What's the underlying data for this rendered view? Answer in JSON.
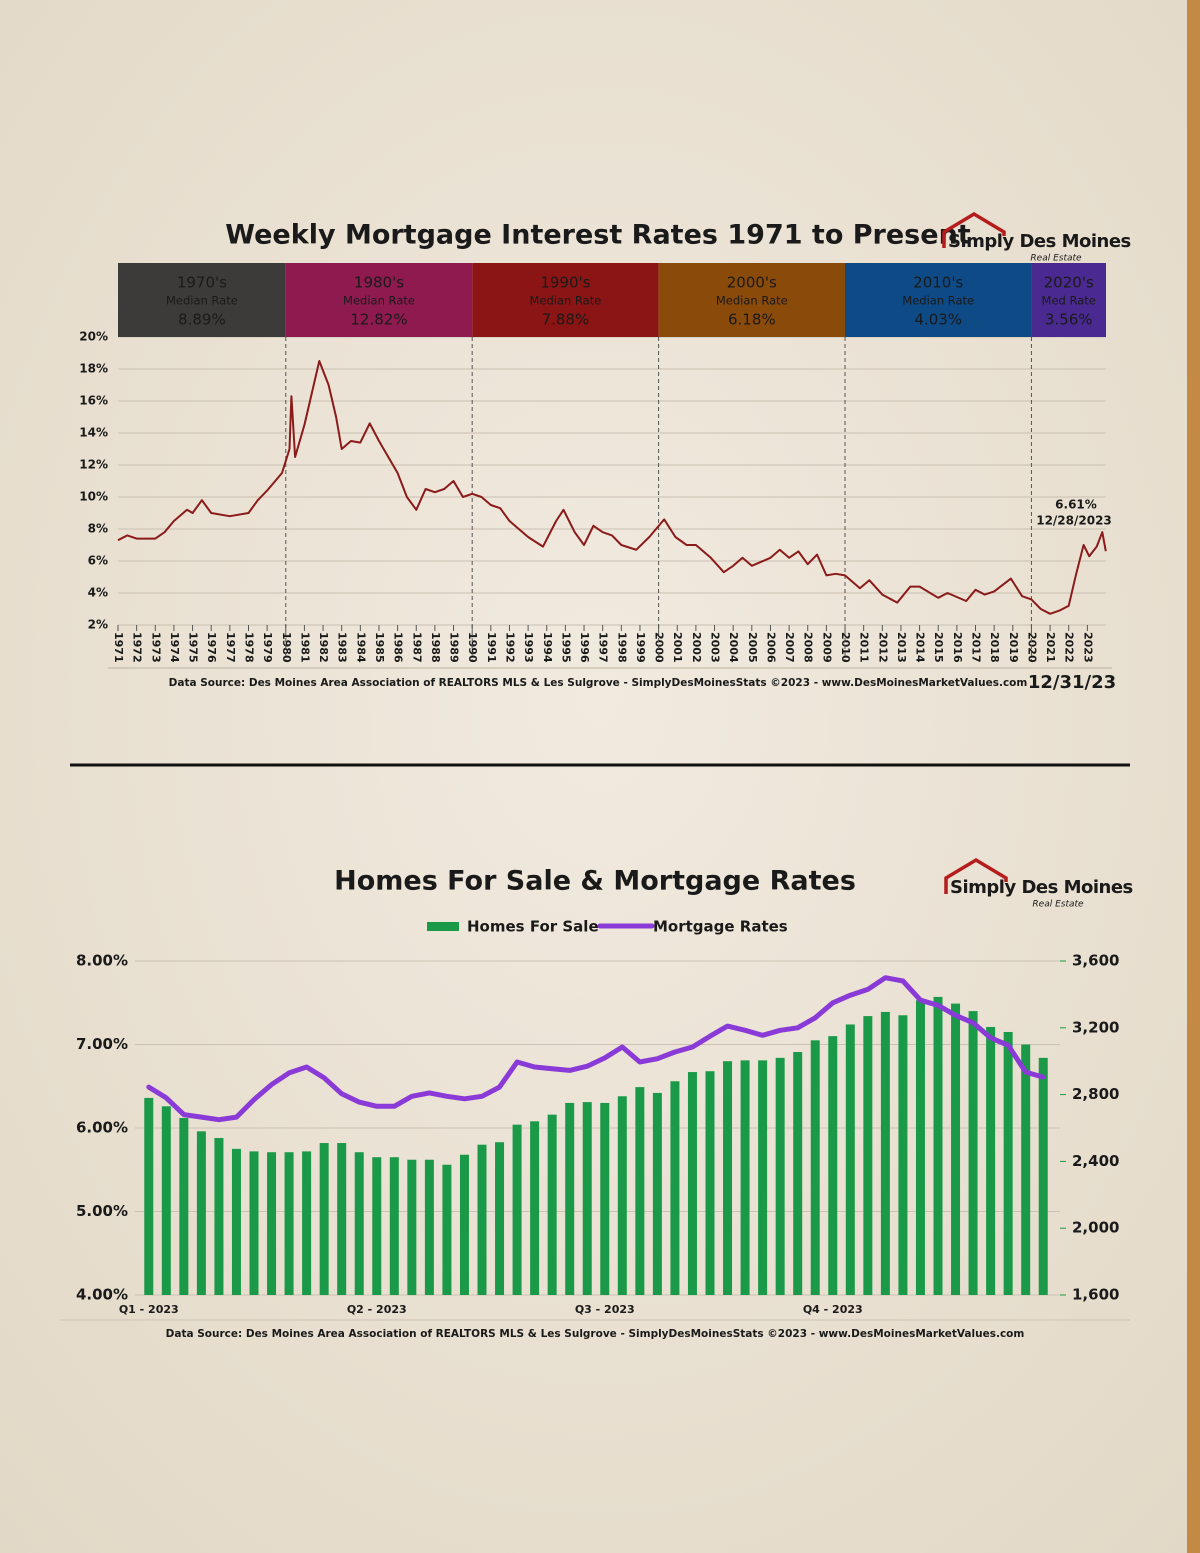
{
  "brand": {
    "name": "Simply Des Moines",
    "tagline": "Real Estate"
  },
  "chart_data": [
    {
      "type": "line",
      "title": "Weekly Mortgage Interest Rates 1971 to Present",
      "color": "#8b1a1a",
      "x": [
        1971,
        1971.5,
        1972,
        1973,
        1973.5,
        1974,
        1974.7,
        1975,
        1975.5,
        1976,
        1977,
        1978,
        1978.5,
        1979,
        1979.8,
        1980.2,
        1980.3,
        1980.5,
        1981,
        1981.5,
        1981.8,
        1982.3,
        1982.7,
        1983,
        1983.5,
        1984,
        1984.5,
        1985,
        1985.5,
        1986,
        1986.5,
        1987,
        1987.5,
        1988,
        1988.5,
        1989,
        1989.5,
        1990,
        1990.5,
        1991,
        1991.5,
        1992,
        1992.5,
        1993,
        1993.8,
        1994.5,
        1994.9,
        1995.5,
        1996,
        1996.5,
        1997,
        1997.5,
        1998,
        1998.8,
        1999.5,
        2000.3,
        2000.9,
        2001.5,
        2002,
        2002.8,
        2003.5,
        2004,
        2004.5,
        2005,
        2006,
        2006.5,
        2007,
        2007.5,
        2008,
        2008.5,
        2009,
        2009.5,
        2010,
        2010.8,
        2011.3,
        2012,
        2012.8,
        2013.5,
        2014,
        2015,
        2015.5,
        2016.5,
        2017,
        2017.5,
        2018,
        2018.9,
        2019.5,
        2020,
        2020.5,
        2021,
        2021.5,
        2022,
        2022.4,
        2022.8,
        2023.1,
        2023.5,
        2023.8,
        2023.99
      ],
      "values": [
        7.3,
        7.6,
        7.4,
        7.4,
        7.8,
        8.5,
        9.2,
        9.0,
        9.8,
        9.0,
        8.8,
        9.0,
        9.8,
        10.4,
        11.5,
        13,
        16.3,
        12.5,
        14.5,
        17,
        18.5,
        17,
        15,
        13,
        13.5,
        13.4,
        14.6,
        13.5,
        12.5,
        11.5,
        10,
        9.2,
        10.5,
        10.3,
        10.5,
        11,
        10,
        10.2,
        10,
        9.5,
        9.3,
        8.5,
        8,
        7.5,
        6.9,
        8.5,
        9.2,
        7.8,
        7,
        8.2,
        7.8,
        7.6,
        7,
        6.7,
        7.5,
        8.6,
        7.5,
        7,
        7,
        6.2,
        5.3,
        5.7,
        6.2,
        5.7,
        6.2,
        6.7,
        6.2,
        6.6,
        5.8,
        6.4,
        5.1,
        5.2,
        5.1,
        4.3,
        4.8,
        3.9,
        3.4,
        4.4,
        4.4,
        3.7,
        4,
        3.5,
        4.2,
        3.9,
        4.1,
        4.9,
        3.8,
        3.6,
        3,
        2.7,
        2.9,
        3.2,
        5.2,
        7,
        6.3,
        6.9,
        7.8,
        6.61
      ],
      "xlim": [
        1971,
        2024
      ],
      "xticks": [
        1971,
        1972,
        1973,
        1974,
        1975,
        1976,
        1977,
        1978,
        1979,
        1980,
        1981,
        1982,
        1983,
        1984,
        1985,
        1986,
        1987,
        1988,
        1989,
        1990,
        1991,
        1992,
        1993,
        1994,
        1995,
        1996,
        1997,
        1998,
        1999,
        2000,
        2001,
        2002,
        2003,
        2004,
        2005,
        2006,
        2007,
        2008,
        2009,
        2010,
        2011,
        2012,
        2013,
        2014,
        2015,
        2016,
        2017,
        2018,
        2019,
        2020,
        2021,
        2022,
        2023
      ],
      "ylim": [
        2,
        20
      ],
      "yticks": [
        {
          "value": 2,
          "label": "2%"
        },
        {
          "value": 4,
          "label": "4%"
        },
        {
          "value": 6,
          "label": "6%"
        },
        {
          "value": 8,
          "label": "8%"
        },
        {
          "value": 10,
          "label": "10%"
        },
        {
          "value": 12,
          "label": "12%"
        },
        {
          "value": 14,
          "label": "14%"
        },
        {
          "value": 16,
          "label": "16%"
        },
        {
          "value": 18,
          "label": "18%"
        },
        {
          "value": 20,
          "label": "20%"
        }
      ],
      "grid": true,
      "bands": [
        {
          "label": "1970's",
          "sublabel": "Median Rate",
          "value": 8.89,
          "value_label": "8.89%",
          "x": [
            1971,
            1980
          ],
          "color": "#3d3b39"
        },
        {
          "label": "1980's",
          "sublabel": "Median Rate",
          "value": 12.82,
          "value_label": "12.82%",
          "x": [
            1980,
            1990
          ],
          "color": "#8e1a4f"
        },
        {
          "label": "1990's",
          "sublabel": "Median Rate",
          "value": 7.88,
          "value_label": "7.88%",
          "x": [
            1990,
            2000
          ],
          "color": "#8b1414"
        },
        {
          "label": "2000's",
          "sublabel": "Median Rate",
          "value": 6.18,
          "value_label": "6.18%",
          "x": [
            2000,
            2010
          ],
          "color": "#8a4a0a"
        },
        {
          "label": "2010's",
          "sublabel": "Median Rate",
          "value": 4.03,
          "value_label": "4.03%",
          "x": [
            2010,
            2020
          ],
          "color": "#0e4a86"
        },
        {
          "label": "2020's",
          "sublabel": "Med Rate",
          "value": 3.56,
          "value_label": "3.56%",
          "x": [
            2020,
            2024
          ],
          "color": "#4a2a90"
        }
      ],
      "annotations": [
        "6.61%",
        "12/28/2023"
      ],
      "source": "Data Source: Des Moines Area Association of REALTORS MLS & Les Sulgrove - SimplyDesMoinesStats ©2023 - www.DesMoinesMarketValues.com",
      "date_label": "12/31/23"
    },
    {
      "type": "combo",
      "title": "Homes For Sale & Mortgage Rates",
      "categories": [
        "Q1 - 2023",
        null,
        null,
        null,
        null,
        null,
        null,
        null,
        null,
        null,
        null,
        null,
        null,
        "Q2 - 2023",
        null,
        null,
        null,
        null,
        null,
        null,
        null,
        null,
        null,
        null,
        null,
        null,
        "Q3 - 2023",
        null,
        null,
        null,
        null,
        null,
        null,
        null,
        null,
        null,
        null,
        null,
        null,
        "Q4 - 2023",
        null,
        null,
        null,
        null,
        null,
        null,
        null,
        null,
        null,
        null,
        null,
        null
      ],
      "series": [
        {
          "name": "Homes For Sale",
          "type": "bar",
          "axis": "y2",
          "color": "#1a9a48",
          "values": [
            2780,
            2730,
            2660,
            2580,
            2540,
            2475,
            2460,
            2455,
            2455,
            2460,
            2510,
            2510,
            2455,
            2425,
            2425,
            2410,
            2410,
            2380,
            2440,
            2500,
            2515,
            2620,
            2640,
            2680,
            2750,
            2755,
            2750,
            2790,
            2845,
            2810,
            2880,
            2935,
            2940,
            3000,
            3005,
            3005,
            3020,
            3055,
            3125,
            3150,
            3220,
            3270,
            3295,
            3275,
            3365,
            3385,
            3345,
            3300,
            3205,
            3175,
            3100,
            3020
          ]
        },
        {
          "name": "Mortgage Rates",
          "type": "line",
          "axis": "y",
          "color": "#8a3ad6",
          "values": [
            6.49,
            6.36,
            6.16,
            6.13,
            6.1,
            6.13,
            6.34,
            6.52,
            6.66,
            6.73,
            6.6,
            6.41,
            6.31,
            6.26,
            6.26,
            6.38,
            6.42,
            6.38,
            6.35,
            6.38,
            6.49,
            6.79,
            6.73,
            6.71,
            6.69,
            6.74,
            6.84,
            6.97,
            6.79,
            6.83,
            6.91,
            6.97,
            7.1,
            7.22,
            7.17,
            7.11,
            7.17,
            7.2,
            7.32,
            7.5,
            7.59,
            7.66,
            7.8,
            7.76,
            7.53,
            7.47,
            7.35,
            7.26,
            7.08,
            6.99,
            6.67,
            6.61
          ]
        }
      ],
      "ylim": [
        4,
        8
      ],
      "yticks": [
        {
          "value": 4,
          "label": "4.00%"
        },
        {
          "value": 5,
          "label": "5.00%"
        },
        {
          "value": 6,
          "label": "6.00%"
        },
        {
          "value": 7,
          "label": "7.00%"
        },
        {
          "value": 8,
          "label": "8.00%"
        }
      ],
      "y2lim": [
        1600,
        3600
      ],
      "y2ticks": [
        {
          "value": 1600,
          "label": "1,600"
        },
        {
          "value": 2000,
          "label": "2,000"
        },
        {
          "value": 2400,
          "label": "2,400"
        },
        {
          "value": 2800,
          "label": "2,800"
        },
        {
          "value": 3200,
          "label": "3,200"
        },
        {
          "value": 3600,
          "label": "3,600"
        }
      ],
      "grid": true,
      "source": "Data Source: Des Moines Area Association of REALTORS MLS & Les Sulgrove - SimplyDesMoinesStats ©2023 - www.DesMoinesMarketValues.com"
    }
  ]
}
